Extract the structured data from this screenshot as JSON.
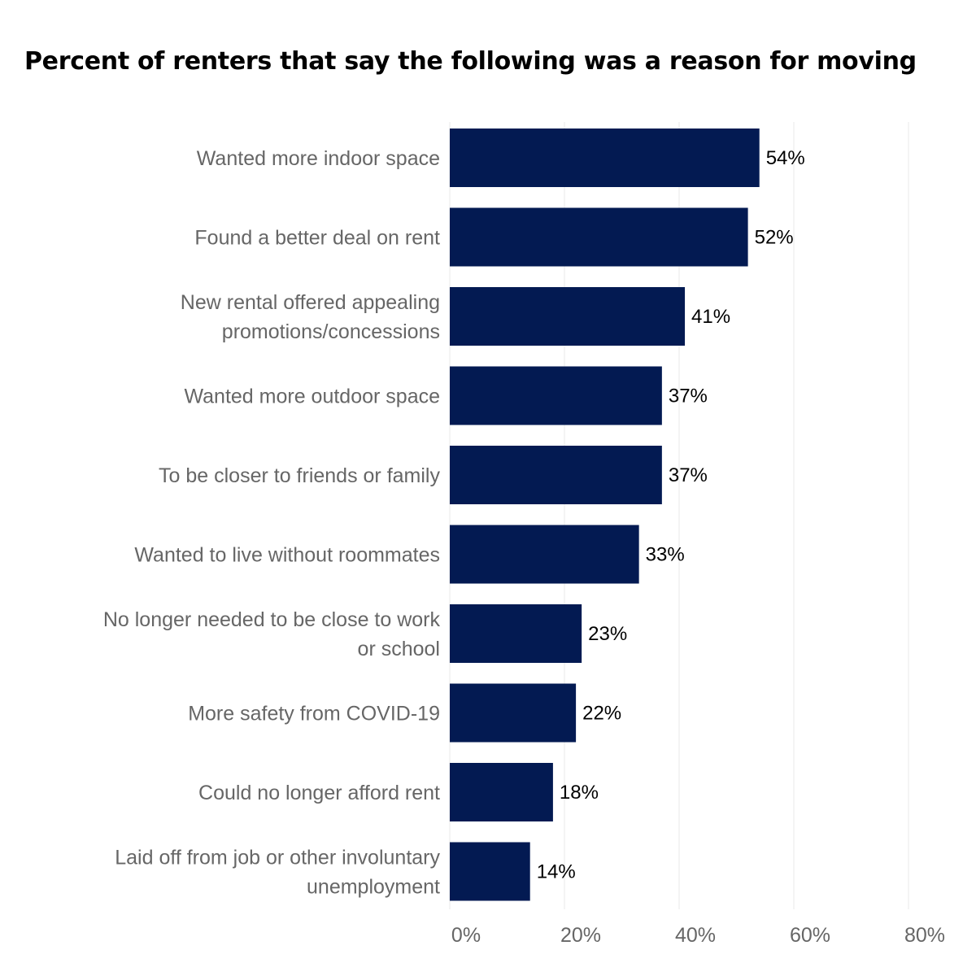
{
  "chart_data": {
    "type": "bar",
    "orientation": "horizontal",
    "title": "Percent of renters that say the following was a reason for moving",
    "categories": [
      "Wanted more indoor space",
      "Found a better deal on rent",
      "New rental offered appealing promotions/concessions",
      "Wanted more outdoor space",
      "To be closer to friends or family",
      "Wanted to live without roommates",
      "No longer needed to be close to work or school",
      "More safety from COVID-19",
      "Could no longer afford rent",
      "Laid off from job or other involuntary unemployment"
    ],
    "category_lines": [
      [
        "Wanted more indoor space"
      ],
      [
        "Found a better deal on rent"
      ],
      [
        "New rental offered appealing",
        "promotions/concessions"
      ],
      [
        "Wanted more outdoor space"
      ],
      [
        "To be closer to friends or family"
      ],
      [
        "Wanted to live without roommates"
      ],
      [
        "No longer needed to be close to work",
        "or school"
      ],
      [
        "More safety from COVID-19"
      ],
      [
        "Could no longer afford rent"
      ],
      [
        "Laid off from job or other involuntary",
        "unemployment"
      ]
    ],
    "values": [
      54,
      52,
      41,
      37,
      37,
      33,
      23,
      22,
      18,
      14
    ],
    "value_labels": [
      "54%",
      "52%",
      "41%",
      "37%",
      "37%",
      "33%",
      "23%",
      "22%",
      "18%",
      "14%"
    ],
    "xlim": [
      0,
      80
    ],
    "xticks": [
      0,
      20,
      40,
      60,
      80
    ],
    "xtick_labels": [
      "0%",
      "20%",
      "40%",
      "60%",
      "80%"
    ],
    "xlabel": "",
    "ylabel": "",
    "grid": true,
    "legend": "none",
    "bar_color": "#031a52"
  }
}
